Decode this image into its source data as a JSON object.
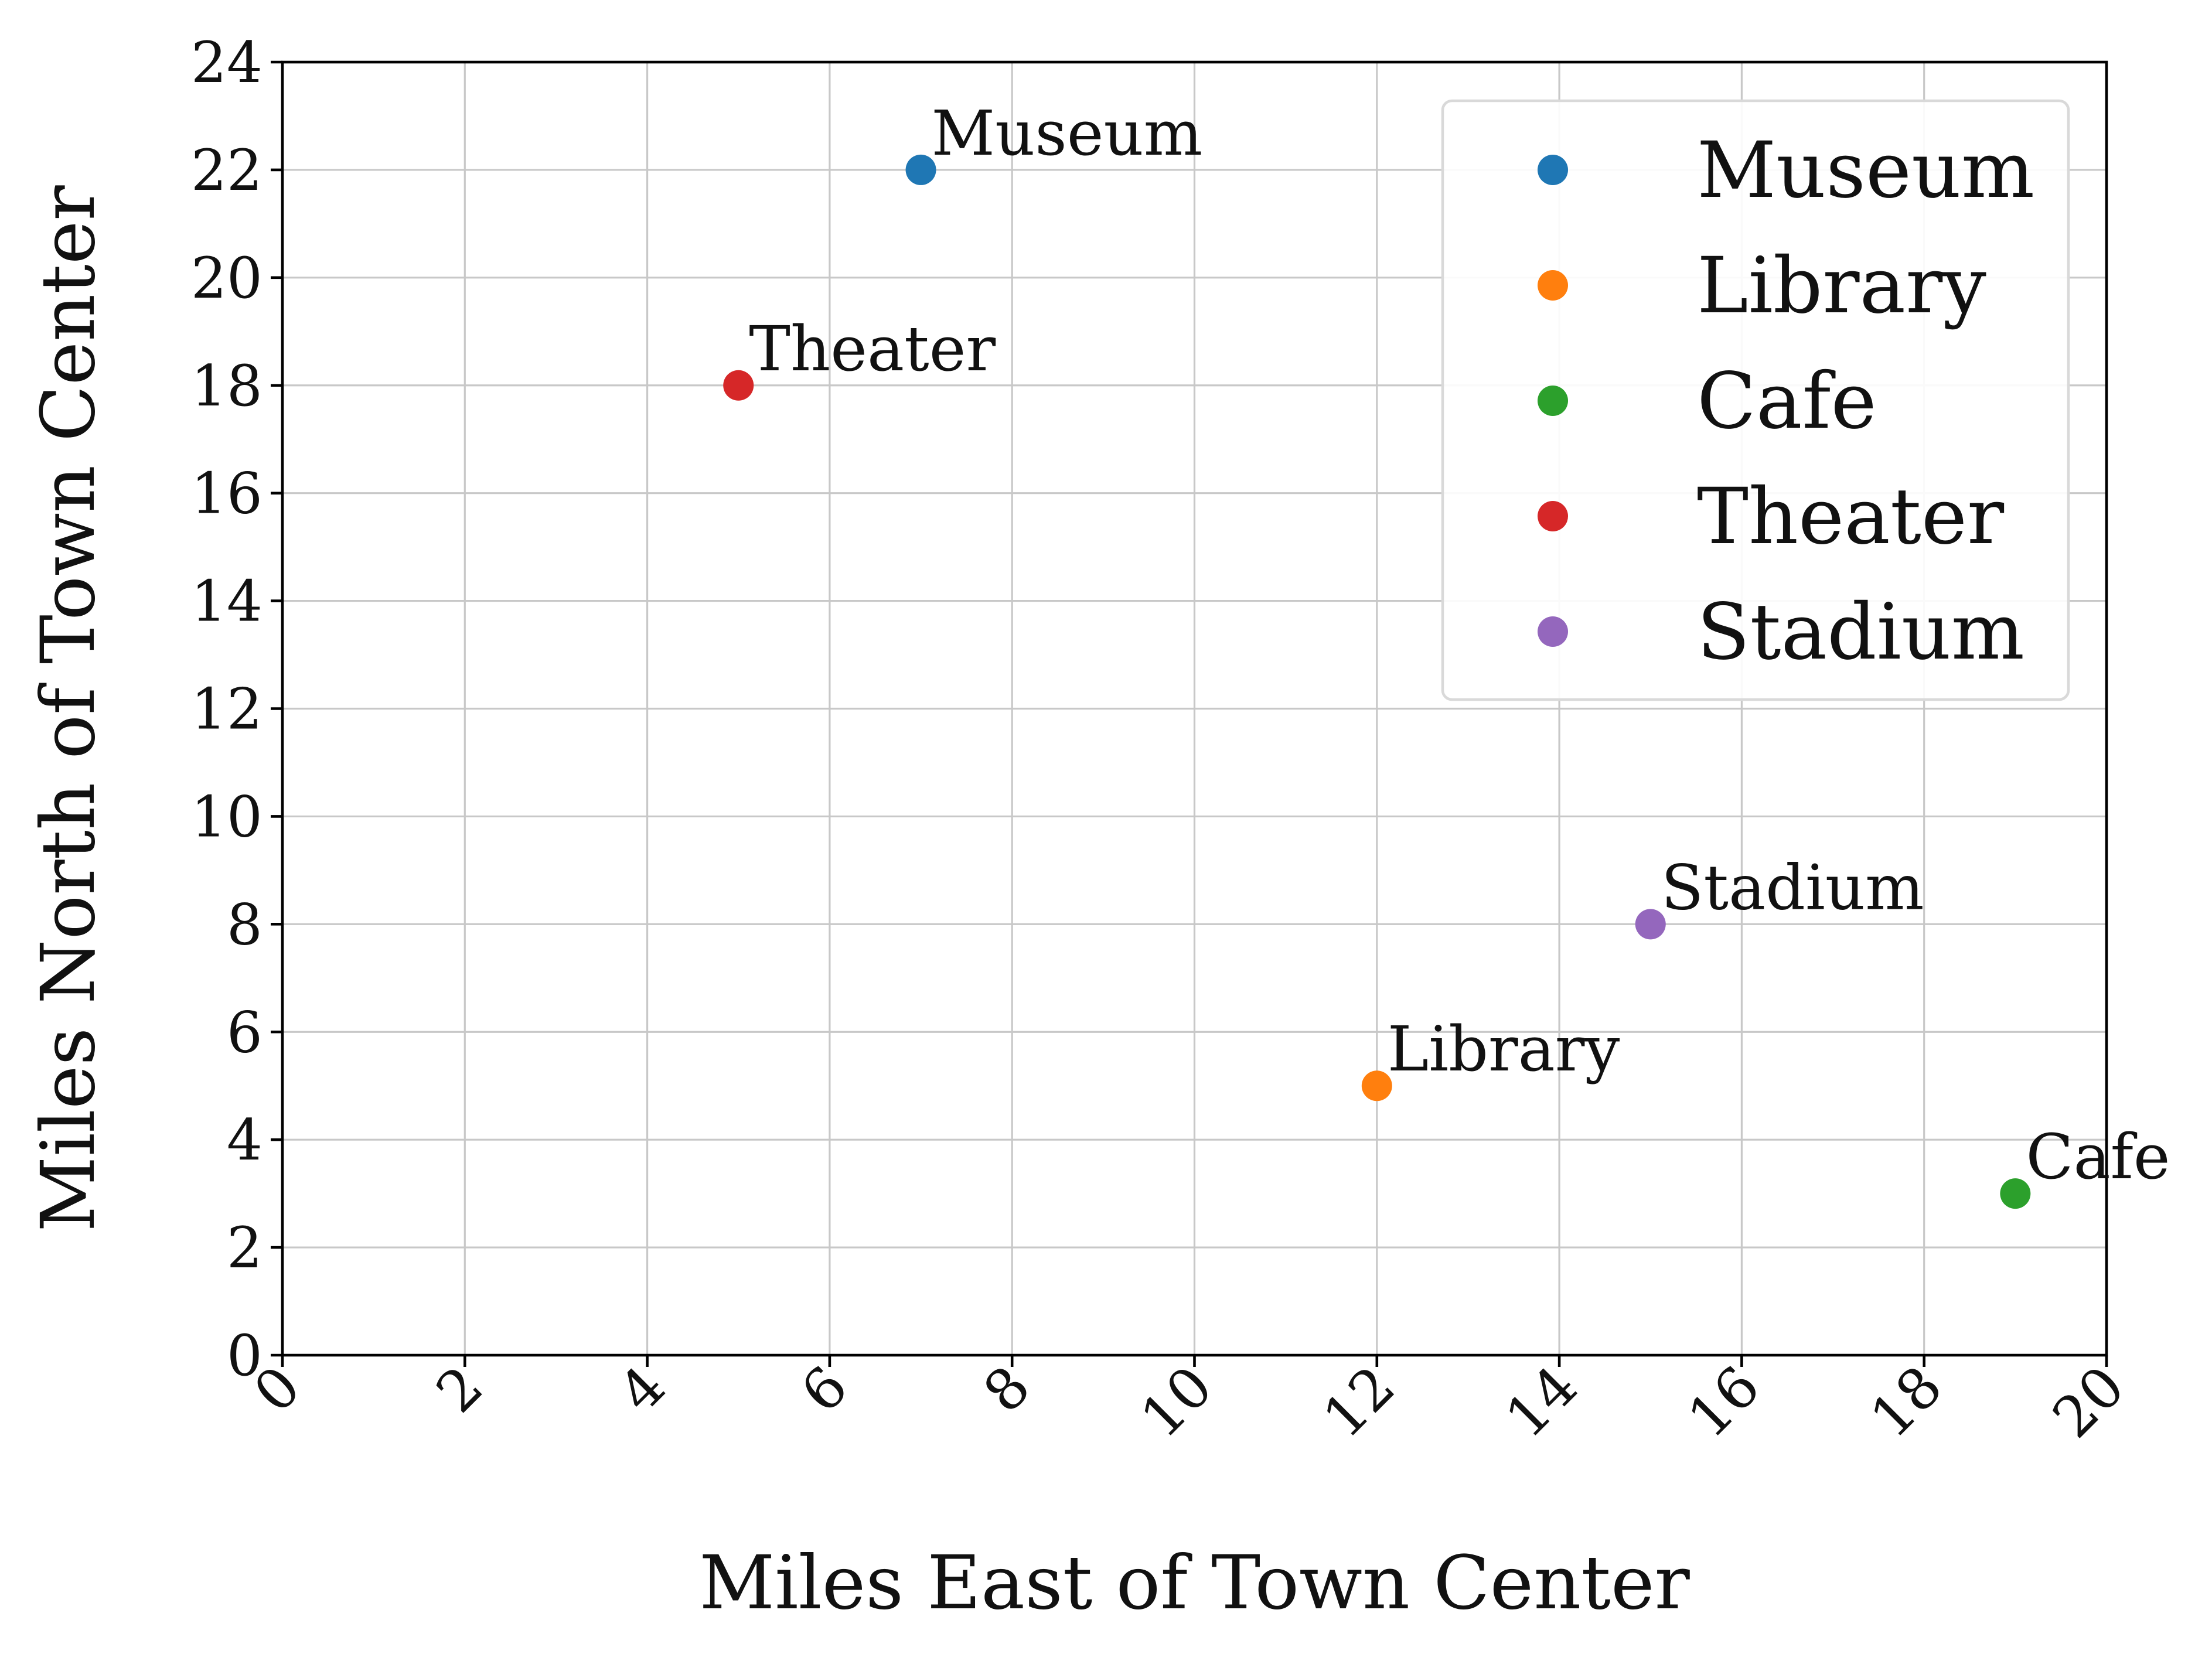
{
  "chart_data": {
    "type": "scatter",
    "title": "",
    "xlabel": "Miles East of Town Center",
    "ylabel": "Miles North of Town Center",
    "xlim": [
      0,
      20
    ],
    "ylim": [
      0,
      24
    ],
    "x_ticks": [
      0,
      2,
      4,
      6,
      8,
      10,
      12,
      14,
      16,
      18,
      20
    ],
    "y_ticks": [
      0,
      2,
      4,
      6,
      8,
      10,
      12,
      14,
      16,
      18,
      20,
      22,
      24
    ],
    "x_tick_rotation_deg": 45,
    "grid": true,
    "legend_position": "top-right",
    "series": [
      {
        "name": "Museum",
        "x": 7,
        "y": 22,
        "color": "#1f77b4",
        "annotation": "Museum"
      },
      {
        "name": "Library",
        "x": 12,
        "y": 5,
        "color": "#ff7f0e",
        "annotation": "Library"
      },
      {
        "name": "Cafe",
        "x": 19,
        "y": 3,
        "color": "#2ca02c",
        "annotation": "Cafe"
      },
      {
        "name": "Theater",
        "x": 5,
        "y": 18,
        "color": "#d62728",
        "annotation": "Theater"
      },
      {
        "name": "Stadium",
        "x": 15,
        "y": 8,
        "color": "#9467bd",
        "annotation": "Stadium"
      }
    ]
  }
}
